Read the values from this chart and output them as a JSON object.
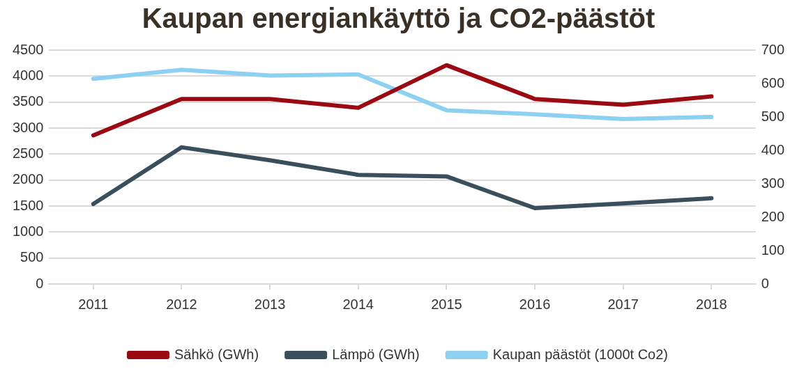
{
  "chart_data": {
    "type": "line",
    "title": "Kaupan energiankäyttö ja CO2-päästöt",
    "categories": [
      "2011",
      "2012",
      "2013",
      "2014",
      "2015",
      "2016",
      "2017",
      "2018"
    ],
    "series": [
      {
        "name": "Sähkö (GWh)",
        "color": "#9b0a12",
        "values": [
          2860,
          3560,
          3560,
          3390,
          4210,
          3560,
          3450,
          3610
        ]
      },
      {
        "name": "Lämpö (GWh)",
        "color": "#3a4f5c",
        "values": [
          1540,
          2630,
          2380,
          2100,
          2070,
          1460,
          1550,
          1650
        ]
      },
      {
        "name": "Kaupan päästöt (1000t Co2)",
        "color": "#8dd0f2",
        "axis": "y2",
        "values": [
          614,
          641,
          624,
          627,
          520,
          508,
          494,
          500
        ]
      }
    ],
    "ylim": [
      0,
      4500
    ],
    "yticks": [
      0,
      500,
      1000,
      1500,
      2000,
      2500,
      3000,
      3500,
      4000,
      4500
    ],
    "y2lim": [
      0,
      700
    ],
    "y2ticks": [
      0,
      100,
      200,
      300,
      400,
      500,
      600,
      700
    ],
    "grid": "y",
    "legend": "bottom",
    "marker": "none",
    "line_style": "solid"
  }
}
